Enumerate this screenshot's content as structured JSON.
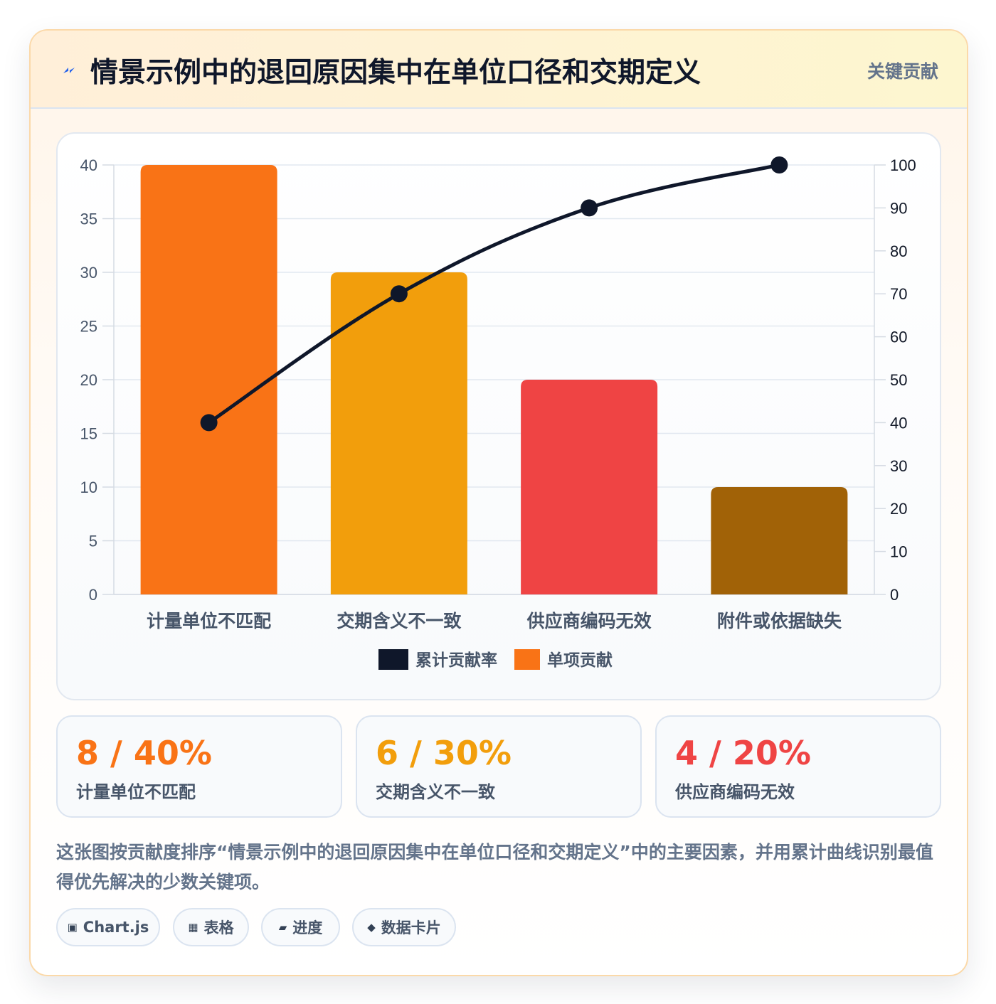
{
  "header": {
    "icon": "lightning-icon",
    "title": "情景示例中的退回原因集中在单位口径和交期定义",
    "badge": "关键贡献"
  },
  "chart_data": {
    "type": "bar",
    "categories": [
      "计量单位不匹配",
      "交期含义不一致",
      "供应商编码无效",
      "附件或依据缺失"
    ],
    "series": [
      {
        "name": "单项贡献",
        "type": "bar",
        "axis": "left",
        "values": [
          40,
          30,
          20,
          10
        ],
        "colors": [
          "#f97316",
          "#f29e0c",
          "#ef4444",
          "#a16207"
        ]
      },
      {
        "name": "累计贡献率",
        "type": "line",
        "axis": "right",
        "values": [
          40,
          70,
          90,
          100
        ],
        "color": "#0f172a"
      }
    ],
    "y_left": {
      "min": 0,
      "max": 40,
      "ticks": [
        0,
        5,
        10,
        15,
        20,
        25,
        30,
        35,
        40
      ]
    },
    "y_right": {
      "min": 0,
      "max": 100,
      "ticks": [
        0,
        10,
        20,
        30,
        40,
        50,
        60,
        70,
        80,
        90,
        100
      ]
    },
    "grid": true,
    "legend_position": "bottom",
    "legend": [
      {
        "label": "累计贡献率",
        "color": "#0f172a"
      },
      {
        "label": "单项贡献",
        "color": "#f97316"
      }
    ]
  },
  "stats": [
    {
      "value": "8 / 40%",
      "label": "计量单位不匹配",
      "color": "#f97316"
    },
    {
      "value": "6 / 30%",
      "label": "交期含义不一致",
      "color": "#f29e0c"
    },
    {
      "value": "4 / 20%",
      "label": "供应商编码无效",
      "color": "#ef4444"
    }
  ],
  "description": "这张图按贡献度排序“情景示例中的退回原因集中在单位口径和交期定义”中的主要因素，并用累计曲线识别最值得优先解决的少数关键项。",
  "tags": [
    {
      "icon": "▣",
      "label": "Chart.js"
    },
    {
      "icon": "▦",
      "label": "表格"
    },
    {
      "icon": "▰",
      "label": "进度"
    },
    {
      "icon": "◆",
      "label": "数据卡片"
    }
  ]
}
